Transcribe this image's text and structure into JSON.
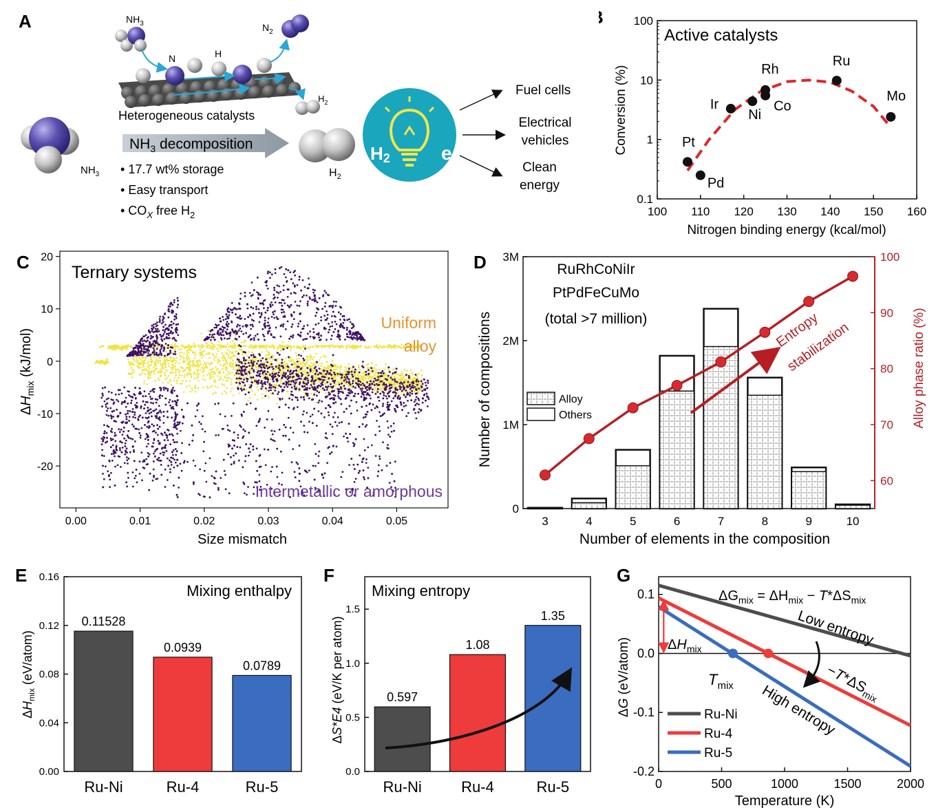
{
  "colors": {
    "ammonia_blue": "#5a4fb0",
    "bulb_bg": "#1aa6bd",
    "bulb_yellow": "#f1e64a",
    "dashed_red": "#e0262a",
    "darkred": "#b51f24",
    "yellow": "#f0e442",
    "purple": "#3f1365",
    "orange": "#e8912f",
    "intermetallic_text": "#6a3a9a",
    "ruNi": "#4d4d4d",
    "ru4": "#ee3b3b",
    "ru5": "#3a6cc0"
  },
  "panelA": {
    "label": "A",
    "nh3_top": "NH3",
    "n2_top": "N2",
    "atom_N": "N",
    "atom_H": "H",
    "h2_small": "H2",
    "hetero": "Heterogeneous catalysts",
    "arrow_label": "NH3 decomposition",
    "nh3_big": "NH3",
    "h2_big": "H2",
    "bullets": [
      "17.7  wt% storage",
      "Easy transport",
      "COx  free H2"
    ],
    "bulb_left": "H2",
    "bulb_right": "e",
    "uses": [
      "Fuel cells",
      "Electrical vehicles",
      "Clean energy"
    ]
  },
  "panelC": {
    "label": "C",
    "uniform_line1": "Uniform",
    "uniform_line2": "alloy",
    "intermetallic": "Intermetallic or amorphous"
  },
  "panelG": {
    "label": "G"
  },
  "chart_data": [
    {
      "id": "B",
      "type": "scatter",
      "title": "Active catalysts",
      "xlabel": "Nitrogen binding energy (kcal/mol)",
      "ylabel": "Conversion (%)",
      "xlim": [
        100,
        160
      ],
      "ylim": [
        0.1,
        100
      ],
      "yscale": "log",
      "xticks": [
        "100",
        "110",
        "120",
        "130",
        "140",
        "150",
        "160"
      ],
      "yticks": [
        "0.1",
        "1",
        "10",
        "100"
      ],
      "points": [
        {
          "label": "Pt",
          "x": 107.0,
          "y": 0.42
        },
        {
          "label": "Pd",
          "x": 110.0,
          "y": 0.25
        },
        {
          "label": "Ir",
          "x": 117.0,
          "y": 3.3
        },
        {
          "label": "Ni",
          "x": 122.0,
          "y": 4.4
        },
        {
          "label": "Co",
          "x": 125.0,
          "y": 5.5
        },
        {
          "label": "Rh",
          "x": 125.0,
          "y": 6.8
        },
        {
          "label": "Ru",
          "x": 141.5,
          "y": 9.8
        },
        {
          "label": "Mo",
          "x": 154.0,
          "y": 2.4
        }
      ],
      "fit_curve": [
        [
          107,
          0.3
        ],
        [
          112,
          1.0
        ],
        [
          118,
          3.2
        ],
        [
          124,
          6.5
        ],
        [
          130,
          9.4
        ],
        [
          135,
          10.0
        ],
        [
          140,
          9.2
        ],
        [
          145,
          6.5
        ],
        [
          150,
          3.6
        ],
        [
          154,
          1.6
        ]
      ]
    },
    {
      "id": "C",
      "type": "scatter",
      "title": "Ternary systems",
      "xlabel": "Size mismatch",
      "ylabel": "ΔHmix (kJ/mol)",
      "xlim": [
        -0.0025,
        0.058
      ],
      "ylim": [
        -28,
        21
      ],
      "xticks": [
        "0.00",
        "0.01",
        "0.02",
        "0.03",
        "0.04",
        "0.05"
      ],
      "yticks": [
        "-20",
        "-10",
        "0",
        "10",
        "20"
      ],
      "series": [
        {
          "name": "Uniform alloy",
          "color": "#f0e442",
          "count": 3000
        },
        {
          "name": "Intermetallic or amorphous",
          "color": "#3f1365",
          "count": 3500
        }
      ]
    },
    {
      "id": "D",
      "type": "bar",
      "title": "RuRhCoNiIr PtPdFeCuMo (total >7 million)",
      "title_lines": [
        "RuRhCoNiIr",
        "PtPdFeCuMo",
        "(total >7 million)"
      ],
      "xlabel": "Number of elements in the composition",
      "ylabel": "Number of compositions",
      "ylabel_right": "Alloy phase ratio (%)",
      "categories": [
        "3",
        "4",
        "5",
        "6",
        "7",
        "8",
        "9",
        "10"
      ],
      "ylim": [
        0,
        3000000
      ],
      "yticks": [
        "0",
        "1M",
        "2M",
        "3M"
      ],
      "ylim_right": [
        55,
        100
      ],
      "yticks_right": [
        "60",
        "70",
        "80",
        "90",
        "100"
      ],
      "series": [
        {
          "name": "Alloy",
          "values": [
            5000,
            70000,
            510000,
            1400000,
            1930000,
            1350000,
            440000,
            40000
          ]
        },
        {
          "name": "Others",
          "values": [
            10000,
            120000,
            700000,
            1820000,
            2380000,
            1560000,
            490000,
            50000
          ]
        }
      ],
      "line": {
        "name": "Alloy phase ratio",
        "values": [
          61.0,
          67.5,
          73.0,
          77.0,
          81.2,
          86.5,
          92.0,
          96.5
        ]
      },
      "annotation": [
        "Entropy",
        "stabilization"
      ],
      "legend": [
        "Alloy",
        "Others"
      ]
    },
    {
      "id": "E",
      "type": "bar",
      "title": "Mixing enthalpy",
      "ylabel": "ΔHmix (eV/atom)",
      "categories": [
        "Ru-Ni",
        "Ru-4",
        "Ru-5"
      ],
      "values": [
        0.11528,
        0.0939,
        0.0789
      ],
      "labels": [
        "0.11528",
        "0.0939",
        "0.0789"
      ],
      "ylim": [
        0,
        0.16
      ],
      "yticks": [
        "0.00",
        "0.04",
        "0.08",
        "0.12",
        "0.16"
      ]
    },
    {
      "id": "F",
      "type": "bar",
      "title": "Mixing entropy",
      "ylabel": "ΔS*E4 (eV/K per atom)",
      "categories": [
        "Ru-Ni",
        "Ru-4",
        "Ru-5"
      ],
      "values": [
        0.597,
        1.08,
        1.35
      ],
      "labels": [
        "0.597",
        "1.08",
        "1.35"
      ],
      "ylim": [
        0,
        1.8
      ],
      "yticks": [
        "0.0",
        "0.5",
        "1.0",
        "1.5"
      ]
    },
    {
      "id": "G",
      "type": "line",
      "title": "ΔGmix = ΔHmix − T*ΔSmix",
      "xlabel": "Temperature (K)",
      "ylabel": "ΔG (eV/atom)",
      "xlim": [
        0,
        2000
      ],
      "ylim": [
        -0.2,
        0.13
      ],
      "xticks": [
        "0",
        "500",
        "1000",
        "1500",
        "2000"
      ],
      "yticks": [
        "-0.2",
        "-0.1",
        "0.0",
        "0.1"
      ],
      "series": [
        {
          "name": "Ru-Ni",
          "x": [
            0,
            2000
          ],
          "y": [
            0.1153,
            -0.0041
          ]
        },
        {
          "name": "Ru-4",
          "x": [
            0,
            2000
          ],
          "y": [
            0.0939,
            -0.1221
          ]
        },
        {
          "name": "Ru-5",
          "x": [
            0,
            2000
          ],
          "y": [
            0.0789,
            -0.1911
          ]
        }
      ],
      "markers": [
        {
          "x": 590,
          "y": 0
        },
        {
          "x": 870,
          "y": 0
        }
      ],
      "labels": {
        "low": "Low entropy",
        "high": "High entropy",
        "dH": "ΔHmix",
        "Tmix": "Tmix",
        "TdS": "−T*ΔSmix"
      }
    }
  ]
}
